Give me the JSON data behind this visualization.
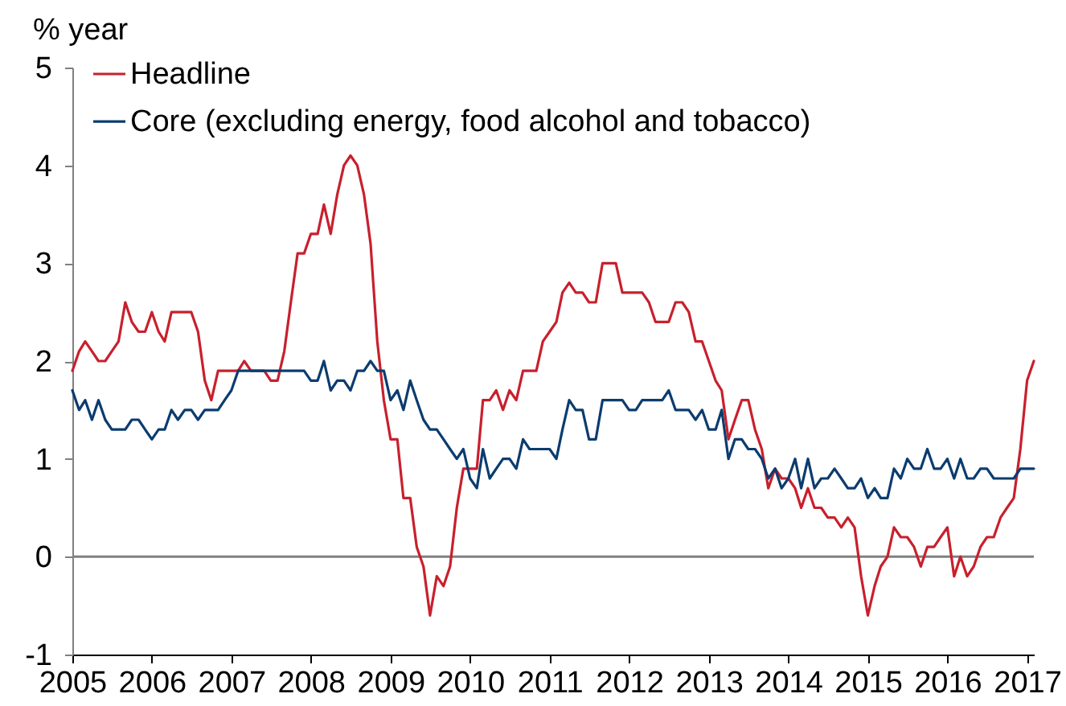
{
  "chart_data": {
    "type": "line",
    "ylabel": "% year",
    "x": [
      "2005-01",
      "2005-02",
      "2005-03",
      "2005-04",
      "2005-05",
      "2005-06",
      "2005-07",
      "2005-08",
      "2005-09",
      "2005-10",
      "2005-11",
      "2005-12",
      "2006-01",
      "2006-02",
      "2006-03",
      "2006-04",
      "2006-05",
      "2006-06",
      "2006-07",
      "2006-08",
      "2006-09",
      "2006-10",
      "2006-11",
      "2006-12",
      "2007-01",
      "2007-02",
      "2007-03",
      "2007-04",
      "2007-05",
      "2007-06",
      "2007-07",
      "2007-08",
      "2007-09",
      "2007-10",
      "2007-11",
      "2007-12",
      "2008-01",
      "2008-02",
      "2008-03",
      "2008-04",
      "2008-05",
      "2008-06",
      "2008-07",
      "2008-08",
      "2008-09",
      "2008-10",
      "2008-11",
      "2008-12",
      "2009-01",
      "2009-02",
      "2009-03",
      "2009-04",
      "2009-05",
      "2009-06",
      "2009-07",
      "2009-08",
      "2009-09",
      "2009-10",
      "2009-11",
      "2009-12",
      "2010-01",
      "2010-02",
      "2010-03",
      "2010-04",
      "2010-05",
      "2010-06",
      "2010-07",
      "2010-08",
      "2010-09",
      "2010-10",
      "2010-11",
      "2010-12",
      "2011-01",
      "2011-02",
      "2011-03",
      "2011-04",
      "2011-05",
      "2011-06",
      "2011-07",
      "2011-08",
      "2011-09",
      "2011-10",
      "2011-11",
      "2011-12",
      "2012-01",
      "2012-02",
      "2012-03",
      "2012-04",
      "2012-05",
      "2012-06",
      "2012-07",
      "2012-08",
      "2012-09",
      "2012-10",
      "2012-11",
      "2012-12",
      "2013-01",
      "2013-02",
      "2013-03",
      "2013-04",
      "2013-05",
      "2013-06",
      "2013-07",
      "2013-08",
      "2013-09",
      "2013-10",
      "2013-11",
      "2013-12",
      "2014-01",
      "2014-02",
      "2014-03",
      "2014-04",
      "2014-05",
      "2014-06",
      "2014-07",
      "2014-08",
      "2014-09",
      "2014-10",
      "2014-11",
      "2014-12",
      "2015-01",
      "2015-02",
      "2015-03",
      "2015-04",
      "2015-05",
      "2015-06",
      "2015-07",
      "2015-08",
      "2015-09",
      "2015-10",
      "2015-11",
      "2015-12",
      "2016-01",
      "2016-02",
      "2016-03",
      "2016-04",
      "2016-05",
      "2016-06",
      "2016-07",
      "2016-08",
      "2016-09",
      "2016-10",
      "2016-11",
      "2016-12",
      "2017-01",
      "2017-02"
    ],
    "series": [
      {
        "name": "Headline",
        "color": "#c8202d",
        "values": [
          1.9,
          2.1,
          2.2,
          2.1,
          2.0,
          2.0,
          2.1,
          2.2,
          2.6,
          2.4,
          2.3,
          2.3,
          2.5,
          2.3,
          2.2,
          2.5,
          2.5,
          2.5,
          2.5,
          2.3,
          1.8,
          1.6,
          1.9,
          1.9,
          1.9,
          1.9,
          2.0,
          1.9,
          1.9,
          1.9,
          1.8,
          1.8,
          2.1,
          2.6,
          3.1,
          3.1,
          3.3,
          3.3,
          3.6,
          3.3,
          3.7,
          4.0,
          4.1,
          4.0,
          3.7,
          3.2,
          2.2,
          1.6,
          1.2,
          1.2,
          0.6,
          0.6,
          0.1,
          -0.1,
          -0.6,
          -0.2,
          -0.3,
          -0.1,
          0.5,
          0.9,
          0.9,
          0.9,
          1.6,
          1.6,
          1.7,
          1.5,
          1.7,
          1.6,
          1.9,
          1.9,
          1.9,
          2.2,
          2.3,
          2.4,
          2.7,
          2.8,
          2.7,
          2.7,
          2.6,
          2.6,
          3.0,
          3.0,
          3.0,
          2.7,
          2.7,
          2.7,
          2.7,
          2.6,
          2.4,
          2.4,
          2.4,
          2.6,
          2.6,
          2.5,
          2.2,
          2.2,
          2.0,
          1.8,
          1.7,
          1.2,
          1.4,
          1.6,
          1.6,
          1.3,
          1.1,
          0.7,
          0.9,
          0.8,
          0.8,
          0.7,
          0.5,
          0.7,
          0.5,
          0.5,
          0.4,
          0.4,
          0.3,
          0.4,
          0.3,
          -0.2,
          -0.6,
          -0.3,
          -0.1,
          0.0,
          0.3,
          0.2,
          0.2,
          0.1,
          -0.1,
          0.1,
          0.1,
          0.2,
          0.3,
          -0.2,
          0.0,
          -0.2,
          -0.1,
          0.1,
          0.2,
          0.2,
          0.4,
          0.5,
          0.6,
          1.1,
          1.8,
          2.0
        ]
      },
      {
        "name": "Core (excluding energy, food alcohol and tobacco)",
        "color": "#0b3c6f",
        "values": [
          1.7,
          1.5,
          1.6,
          1.4,
          1.6,
          1.4,
          1.3,
          1.3,
          1.3,
          1.4,
          1.4,
          1.3,
          1.2,
          1.3,
          1.3,
          1.5,
          1.4,
          1.5,
          1.5,
          1.4,
          1.5,
          1.5,
          1.5,
          1.6,
          1.7,
          1.9,
          1.9,
          1.9,
          1.9,
          1.9,
          1.9,
          1.9,
          1.9,
          1.9,
          1.9,
          1.9,
          1.8,
          1.8,
          2.0,
          1.7,
          1.8,
          1.8,
          1.7,
          1.9,
          1.9,
          2.0,
          1.9,
          1.9,
          1.6,
          1.7,
          1.5,
          1.8,
          1.6,
          1.4,
          1.3,
          1.3,
          1.2,
          1.1,
          1.0,
          1.1,
          0.8,
          0.7,
          1.1,
          0.8,
          0.9,
          1.0,
          1.0,
          0.9,
          1.2,
          1.1,
          1.1,
          1.1,
          1.1,
          1.0,
          1.3,
          1.6,
          1.5,
          1.5,
          1.2,
          1.2,
          1.6,
          1.6,
          1.6,
          1.6,
          1.5,
          1.5,
          1.6,
          1.6,
          1.6,
          1.6,
          1.7,
          1.5,
          1.5,
          1.5,
          1.4,
          1.5,
          1.3,
          1.3,
          1.5,
          1.0,
          1.2,
          1.2,
          1.1,
          1.1,
          1.0,
          0.8,
          0.9,
          0.7,
          0.8,
          1.0,
          0.7,
          1.0,
          0.7,
          0.8,
          0.8,
          0.9,
          0.8,
          0.7,
          0.7,
          0.8,
          0.6,
          0.7,
          0.6,
          0.6,
          0.9,
          0.8,
          1.0,
          0.9,
          0.9,
          1.1,
          0.9,
          0.9,
          1.0,
          0.8,
          1.0,
          0.8,
          0.8,
          0.9,
          0.9,
          0.8,
          0.8,
          0.8,
          0.8,
          0.9,
          0.9,
          0.9
        ]
      }
    ],
    "xlim": [
      "2005-01",
      "2017-02"
    ],
    "xticks": [
      "2005",
      "2006",
      "2007",
      "2008",
      "2009",
      "2010",
      "2011",
      "2012",
      "2013",
      "2014",
      "2015",
      "2016",
      "2017"
    ],
    "ylim": [
      -1,
      5
    ],
    "yticks": [
      -1,
      0,
      1,
      2,
      3,
      4,
      5
    ],
    "ref_lines": [
      {
        "axis": "y",
        "value": 0,
        "color": "#808080"
      }
    ],
    "legend": "top left"
  }
}
